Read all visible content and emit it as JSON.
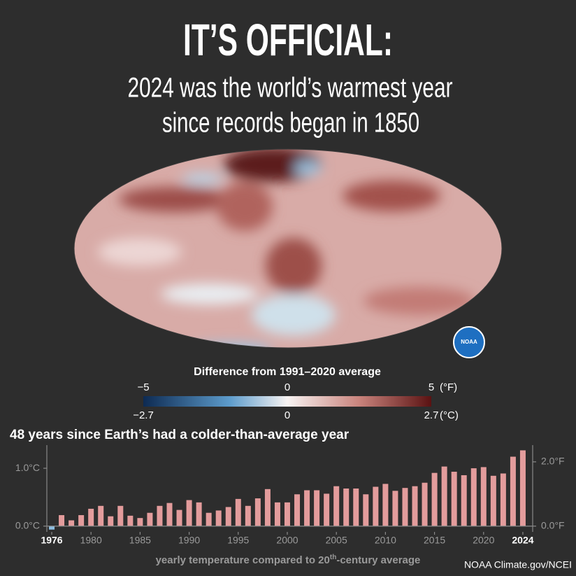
{
  "header": {
    "title": "IT’S OFFICIAL:",
    "subtitle_lines": [
      "2024 was the world’s warmest year",
      "since records began in 1850"
    ]
  },
  "map": {
    "logo": "NOAA"
  },
  "map_legend": {
    "title": "Difference from 1991–2020 average",
    "fahrenheit": {
      "lim": [
        -5,
        5
      ],
      "ticks": [
        {
          "value": -5,
          "label": "−5"
        },
        0,
        5
      ],
      "unit": "(°F)"
    },
    "celsius": {
      "lim": [
        -2.7,
        2.7
      ],
      "ticks": [
        {
          "value": -2.7,
          "label": "−2.7"
        },
        0,
        2.7
      ],
      "unit": "(°C)"
    }
  },
  "chart_data": {
    "type": "bar",
    "title": "48 years since Earth’s had a colder-than-average year",
    "x_label_parts": [
      "yearly temperature compared to 20",
      "th",
      "-century average"
    ],
    "x": [
      1976,
      1977,
      1978,
      1979,
      1980,
      1981,
      1982,
      1983,
      1984,
      1985,
      1986,
      1987,
      1988,
      1989,
      1990,
      1991,
      1992,
      1993,
      1994,
      1995,
      1996,
      1997,
      1998,
      1999,
      2000,
      2001,
      2002,
      2003,
      2004,
      2005,
      2006,
      2007,
      2008,
      2009,
      2010,
      2011,
      2012,
      2013,
      2014,
      2015,
      2016,
      2017,
      2018,
      2019,
      2020,
      2021,
      2022,
      2023,
      2024
    ],
    "values": [
      -0.06,
      0.19,
      0.1,
      0.19,
      0.3,
      0.35,
      0.17,
      0.35,
      0.18,
      0.14,
      0.23,
      0.35,
      0.4,
      0.28,
      0.45,
      0.41,
      0.23,
      0.27,
      0.33,
      0.47,
      0.35,
      0.48,
      0.64,
      0.41,
      0.41,
      0.55,
      0.62,
      0.62,
      0.56,
      0.69,
      0.65,
      0.65,
      0.55,
      0.68,
      0.73,
      0.61,
      0.66,
      0.69,
      0.75,
      0.92,
      1.03,
      0.94,
      0.88,
      1.0,
      1.02,
      0.87,
      0.91,
      1.2,
      1.31
    ],
    "color": "#e39c9c",
    "negative_color": "#8cbde0",
    "xlim": [
      1975.5,
      2025
    ],
    "xticks": [
      1976,
      1980,
      1985,
      1990,
      1995,
      2000,
      2005,
      2010,
      2015,
      2020,
      2024
    ],
    "ylim": [
      -0.1,
      1.4
    ],
    "yticks": [
      {
        "value": 0,
        "label": "0.0°C"
      },
      {
        "value": 1,
        "label": "1.0°C"
      }
    ],
    "y2lim": [
      -0.18,
      2.52
    ],
    "y2ticks": [
      {
        "value": 0,
        "label": "0.0°F"
      },
      {
        "value": 2,
        "label": "2.0°F"
      }
    ]
  },
  "credit": "NOAA Climate.gov/NCEI"
}
